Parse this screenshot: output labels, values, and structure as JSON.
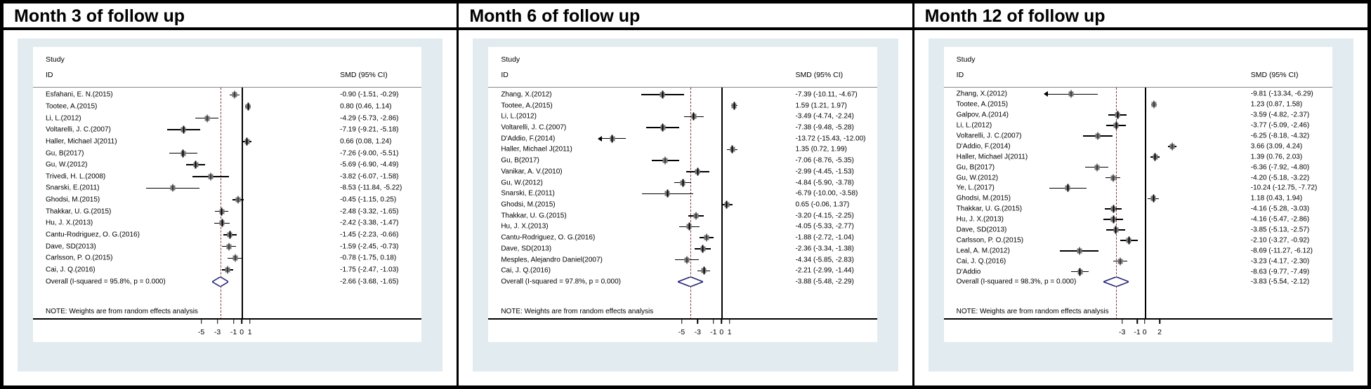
{
  "figure": {
    "note": "NOTE: Weights are from random effects analysis",
    "headers": {
      "study": "Study",
      "id": "ID",
      "smd": "SMD (95% CI)"
    }
  },
  "colors": {
    "background_tint": "#e2ebef",
    "dashed_overall_line": "#8b3038",
    "diamond_outline": "#232377",
    "marker_fill": "#777777",
    "axis": "#000000"
  },
  "chart_data": [
    {
      "type": "forest",
      "title": "Month 3 of follow up",
      "col_headers": {
        "study": "Study",
        "id": "ID",
        "smd": "SMD (95% CI)"
      },
      "note": "NOTE: Weights are from random effects analysis",
      "x_ticks": [
        -5,
        -3,
        -1,
        0,
        1
      ],
      "layout": {
        "zero_frac": 0.537,
        "unit_frac": 0.0208,
        "value_col_frac": 0.79,
        "legend_position": "none",
        "grid": false
      },
      "studies": [
        {
          "id": "Esfahani, E. N.(2015)",
          "smd": -0.9,
          "lo": -1.51,
          "hi": -0.29,
          "label": "-0.90 (-1.51, -0.29)",
          "arrow_left": false
        },
        {
          "id": "Tootee, A.(2015)",
          "smd": 0.8,
          "lo": 0.46,
          "hi": 1.14,
          "label": "0.80 (0.46, 1.14)",
          "arrow_left": false
        },
        {
          "id": "Li, L.(2012)",
          "smd": -4.29,
          "lo": -5.73,
          "hi": -2.86,
          "label": "-4.29 (-5.73, -2.86)",
          "arrow_left": false
        },
        {
          "id": "Voltarelli, J. C.(2007)",
          "smd": -7.19,
          "lo": -9.21,
          "hi": -5.18,
          "label": "-7.19 (-9.21, -5.18)",
          "arrow_left": false
        },
        {
          "id": "Haller, Michael J(2011)",
          "smd": 0.66,
          "lo": 0.08,
          "hi": 1.24,
          "label": "0.66 (0.08, 1.24)",
          "arrow_left": false
        },
        {
          "id": "Gu, B(2017)",
          "smd": -7.26,
          "lo": -9.0,
          "hi": -5.51,
          "label": "-7.26 (-9.00, -5.51)",
          "arrow_left": false
        },
        {
          "id": "Gu, W.(2012)",
          "smd": -5.69,
          "lo": -6.9,
          "hi": -4.49,
          "label": "-5.69 (-6.90, -4.49)",
          "arrow_left": false
        },
        {
          "id": "Trivedi, H. L.(2008)",
          "smd": -3.82,
          "lo": -6.07,
          "hi": -1.58,
          "label": "-3.82 (-6.07, -1.58)",
          "arrow_left": false
        },
        {
          "id": "Snarski, E.(2011)",
          "smd": -8.53,
          "lo": -11.84,
          "hi": -5.22,
          "label": "-8.53 (-11.84, -5.22)",
          "arrow_left": false
        },
        {
          "id": "Ghodsi, M.(2015)",
          "smd": -0.45,
          "lo": -1.15,
          "hi": 0.25,
          "label": "-0.45 (-1.15, 0.25)",
          "arrow_left": false
        },
        {
          "id": "Thakkar, U. G.(2015)",
          "smd": -2.48,
          "lo": -3.32,
          "hi": -1.65,
          "label": "-2.48 (-3.32, -1.65)",
          "arrow_left": false
        },
        {
          "id": "Hu, J. X.(2013)",
          "smd": -2.42,
          "lo": -3.38,
          "hi": -1.47,
          "label": "-2.42 (-3.38, -1.47)",
          "arrow_left": false
        },
        {
          "id": "Cantu-Rodriguez, O. G.(2016)",
          "smd": -1.45,
          "lo": -2.23,
          "hi": -0.66,
          "label": "-1.45 (-2.23, -0.66)",
          "arrow_left": false
        },
        {
          "id": "Dave, SD(2013)",
          "smd": -1.59,
          "lo": -2.45,
          "hi": -0.73,
          "label": "-1.59 (-2.45, -0.73)",
          "arrow_left": false
        },
        {
          "id": "Carlsson, P. O.(2015)",
          "smd": -0.78,
          "lo": -1.75,
          "hi": 0.18,
          "label": "-0.78 (-1.75, 0.18)",
          "arrow_left": false
        },
        {
          "id": "Cai, J. Q.(2016)",
          "smd": -1.75,
          "lo": -2.47,
          "hi": -1.03,
          "label": "-1.75 (-2.47, -1.03)",
          "arrow_left": false
        }
      ],
      "overall": {
        "id": "Overall  (I-squared = 95.8%, p = 0.000)",
        "smd": -2.66,
        "lo": -3.68,
        "hi": -1.65,
        "label": "-2.66 (-3.68, -1.65)"
      }
    },
    {
      "type": "forest",
      "title": "Month 6 of follow up",
      "col_headers": {
        "study": "Study",
        "id": "ID",
        "smd": "SMD (95% CI)"
      },
      "note": "NOTE: Weights are from random effects analysis",
      "x_ticks": [
        -5,
        -3,
        -1,
        0,
        1
      ],
      "layout": {
        "zero_frac": 0.6,
        "unit_frac": 0.0205,
        "value_col_frac": 0.79,
        "legend_position": "none",
        "grid": false
      },
      "studies": [
        {
          "id": "Zhang, X.(2012)",
          "smd": -7.39,
          "lo": -10.11,
          "hi": -4.67,
          "label": "-7.39 (-10.11, -4.67)",
          "arrow_left": false
        },
        {
          "id": "Tootee, A.(2015)",
          "smd": 1.59,
          "lo": 1.21,
          "hi": 1.97,
          "label": "1.59 (1.21, 1.97)",
          "arrow_left": false
        },
        {
          "id": "Li, L.(2012)",
          "smd": -3.49,
          "lo": -4.74,
          "hi": -2.24,
          "label": "-3.49 (-4.74, -2.24)",
          "arrow_left": false
        },
        {
          "id": "Voltarelli, J. C.(2007)",
          "smd": -7.38,
          "lo": -9.48,
          "hi": -5.28,
          "label": "-7.38 (-9.48, -5.28)",
          "arrow_left": false
        },
        {
          "id": "D'Addio, F.(2014)",
          "smd": -13.72,
          "lo": -15.43,
          "hi": -12.0,
          "label": "-13.72 (-15.43, -12.00)",
          "arrow_left": true
        },
        {
          "id": "Haller, Michael J(2011)",
          "smd": 1.35,
          "lo": 0.72,
          "hi": 1.99,
          "label": "1.35 (0.72, 1.99)",
          "arrow_left": false
        },
        {
          "id": "Gu, B(2017)",
          "smd": -7.06,
          "lo": -8.76,
          "hi": -5.35,
          "label": "-7.06 (-8.76, -5.35)",
          "arrow_left": false
        },
        {
          "id": "Vanikar, A. V.(2010)",
          "smd": -2.99,
          "lo": -4.45,
          "hi": -1.53,
          "label": "-2.99 (-4.45, -1.53)",
          "arrow_left": false
        },
        {
          "id": "Gu, W.(2012)",
          "smd": -4.84,
          "lo": -5.9,
          "hi": -3.78,
          "label": "-4.84 (-5.90, -3.78)",
          "arrow_left": false
        },
        {
          "id": "Snarski, E.(2011)",
          "smd": -6.79,
          "lo": -10.0,
          "hi": -3.58,
          "label": "-6.79 (-10.00, -3.58)",
          "arrow_left": false
        },
        {
          "id": "Ghodsi, M.(2015)",
          "smd": 0.65,
          "lo": -0.06,
          "hi": 1.37,
          "label": "0.65 (-0.06, 1.37)",
          "arrow_left": false
        },
        {
          "id": "Thakkar, U. G.(2015)",
          "smd": -3.2,
          "lo": -4.15,
          "hi": -2.25,
          "label": "-3.20 (-4.15, -2.25)",
          "arrow_left": false
        },
        {
          "id": "Hu, J. X.(2013)",
          "smd": -4.05,
          "lo": -5.33,
          "hi": -2.77,
          "label": "-4.05 (-5.33, -2.77)",
          "arrow_left": false
        },
        {
          "id": "Cantu-Rodriguez, O. G.(2016)",
          "smd": -1.88,
          "lo": -2.72,
          "hi": -1.04,
          "label": "-1.88 (-2.72, -1.04)",
          "arrow_left": false
        },
        {
          "id": "Dave, SD(2013)",
          "smd": -2.36,
          "lo": -3.34,
          "hi": -1.38,
          "label": "-2.36 (-3.34, -1.38)",
          "arrow_left": false
        },
        {
          "id": "Mesples, Alejandro Daniel(2007)",
          "smd": -4.34,
          "lo": -5.85,
          "hi": -2.83,
          "label": "-4.34 (-5.85, -2.83)",
          "arrow_left": false
        },
        {
          "id": "Cai, J. Q.(2016)",
          "smd": -2.21,
          "lo": -2.99,
          "hi": -1.44,
          "label": "-2.21 (-2.99, -1.44)",
          "arrow_left": false
        }
      ],
      "overall": {
        "id": "Overall  (I-squared = 97.8%, p = 0.000)",
        "smd": -3.88,
        "lo": -5.48,
        "hi": -2.29,
        "label": "-3.88 (-5.48, -2.29)"
      }
    },
    {
      "type": "forest",
      "title": "Month 12 of follow up",
      "col_headers": {
        "study": "Study",
        "id": "ID",
        "smd": "SMD (95% CI)"
      },
      "note": "NOTE: Weights are from random effects analysis",
      "x_ticks": [
        -3,
        -1,
        0,
        2
      ],
      "layout": {
        "zero_frac": 0.517,
        "unit_frac": 0.0193,
        "value_col_frac": 0.79,
        "legend_position": "none",
        "grid": false
      },
      "studies": [
        {
          "id": "Zhang, X.(2012)",
          "smd": -9.81,
          "lo": -13.34,
          "hi": -6.29,
          "label": "-9.81 (-13.34, -6.29)",
          "arrow_left": true
        },
        {
          "id": "Tootee, A.(2015)",
          "smd": 1.23,
          "lo": 0.87,
          "hi": 1.58,
          "label": "1.23 (0.87, 1.58)",
          "arrow_left": false
        },
        {
          "id": "Galpov, A.(2014)",
          "smd": -3.59,
          "lo": -4.82,
          "hi": -2.37,
          "label": "-3.59 (-4.82, -2.37)",
          "arrow_left": false
        },
        {
          "id": "Li, L.(2012)",
          "smd": -3.77,
          "lo": -5.09,
          "hi": -2.46,
          "label": "-3.77 (-5.09, -2.46)",
          "arrow_left": false
        },
        {
          "id": "Voltarelli, J. C.(2007)",
          "smd": -6.25,
          "lo": -8.18,
          "hi": -4.32,
          "label": "-6.25 (-8.18, -4.32)",
          "arrow_left": false
        },
        {
          "id": "D'Addio, F.(2014)",
          "smd": 3.66,
          "lo": 3.09,
          "hi": 4.24,
          "label": "3.66 (3.09, 4.24)",
          "arrow_left": false
        },
        {
          "id": "Haller, Michael J(2011)",
          "smd": 1.39,
          "lo": 0.76,
          "hi": 2.03,
          "label": "1.39 (0.76, 2.03)",
          "arrow_left": false
        },
        {
          "id": "Gu, B(2017)",
          "smd": -6.36,
          "lo": -7.92,
          "hi": -4.8,
          "label": "-6.36 (-7.92, -4.80)",
          "arrow_left": false
        },
        {
          "id": "Gu, W.(2012)",
          "smd": -4.2,
          "lo": -5.18,
          "hi": -3.22,
          "label": "-4.20 (-5.18, -3.22)",
          "arrow_left": false
        },
        {
          "id": "Ye, L.(2017)",
          "smd": -10.24,
          "lo": -12.75,
          "hi": -7.72,
          "label": "-10.24 (-12.75, -7.72)",
          "arrow_left": false
        },
        {
          "id": "Ghodsi, M.(2015)",
          "smd": 1.18,
          "lo": 0.43,
          "hi": 1.94,
          "label": "1.18 (0.43, 1.94)",
          "arrow_left": false
        },
        {
          "id": "Thakkar, U. G.(2015)",
          "smd": -4.16,
          "lo": -5.28,
          "hi": -3.03,
          "label": "-4.16 (-5.28, -3.03)",
          "arrow_left": false
        },
        {
          "id": "Hu, J. X.(2013)",
          "smd": -4.16,
          "lo": -5.47,
          "hi": -2.86,
          "label": "-4.16 (-5.47, -2.86)",
          "arrow_left": false
        },
        {
          "id": "Dave, SD(2013)",
          "smd": -3.85,
          "lo": -5.13,
          "hi": -2.57,
          "label": "-3.85 (-5.13, -2.57)",
          "arrow_left": false
        },
        {
          "id": "Carlsson, P. O.(2015)",
          "smd": -2.1,
          "lo": -3.27,
          "hi": -0.92,
          "label": "-2.10 (-3.27, -0.92)",
          "arrow_left": false
        },
        {
          "id": "Leal, A. M.(2012)",
          "smd": -8.69,
          "lo": -11.27,
          "hi": -6.12,
          "label": "-8.69 (-11.27, -6.12)",
          "arrow_left": false
        },
        {
          "id": "Cai, J. Q.(2016)",
          "smd": -3.23,
          "lo": -4.17,
          "hi": -2.3,
          "label": "-3.23 (-4.17, -2.30)",
          "arrow_left": false
        },
        {
          "id": "D'Addio",
          "smd": -8.63,
          "lo": -9.77,
          "hi": -7.49,
          "label": "-8.63 (-9.77, -7.49)",
          "arrow_left": false
        }
      ],
      "overall": {
        "id": "Overall  (I-squared = 98.3%, p = 0.000)",
        "smd": -3.83,
        "lo": -5.54,
        "hi": -2.12,
        "label": "-3.83 (-5.54, -2.12)"
      }
    }
  ]
}
